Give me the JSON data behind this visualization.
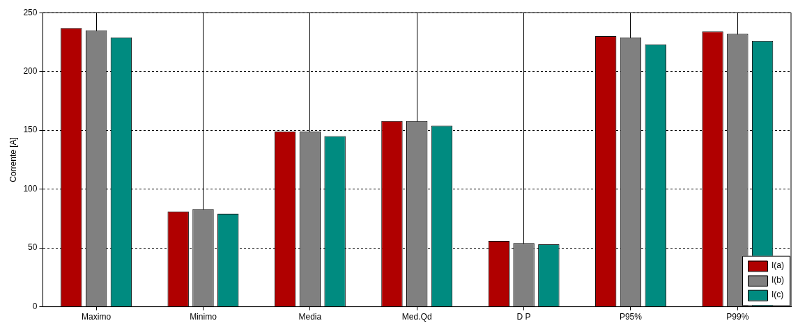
{
  "chart_data": {
    "type": "bar",
    "ylabel": "Corrente [A]",
    "categories": [
      "Maximo",
      "Minimo",
      "Media",
      "Med.Qd",
      "D P",
      "P95%",
      "P99%"
    ],
    "series": [
      {
        "name": "I(a)",
        "color": "#b00000",
        "values": [
          237,
          81,
          149,
          158,
          56,
          230,
          234
        ]
      },
      {
        "name": "I(b)",
        "color": "#808080",
        "values": [
          235,
          83,
          149,
          158,
          54,
          229,
          232
        ]
      },
      {
        "name": "I(c)",
        "color": "#008b80",
        "values": [
          229,
          79,
          145,
          154,
          53,
          223,
          226
        ]
      }
    ],
    "ylim": [
      0,
      250
    ],
    "yticks": [
      0,
      50,
      100,
      150,
      200,
      250
    ],
    "grid": true,
    "legend": "bottom right"
  }
}
